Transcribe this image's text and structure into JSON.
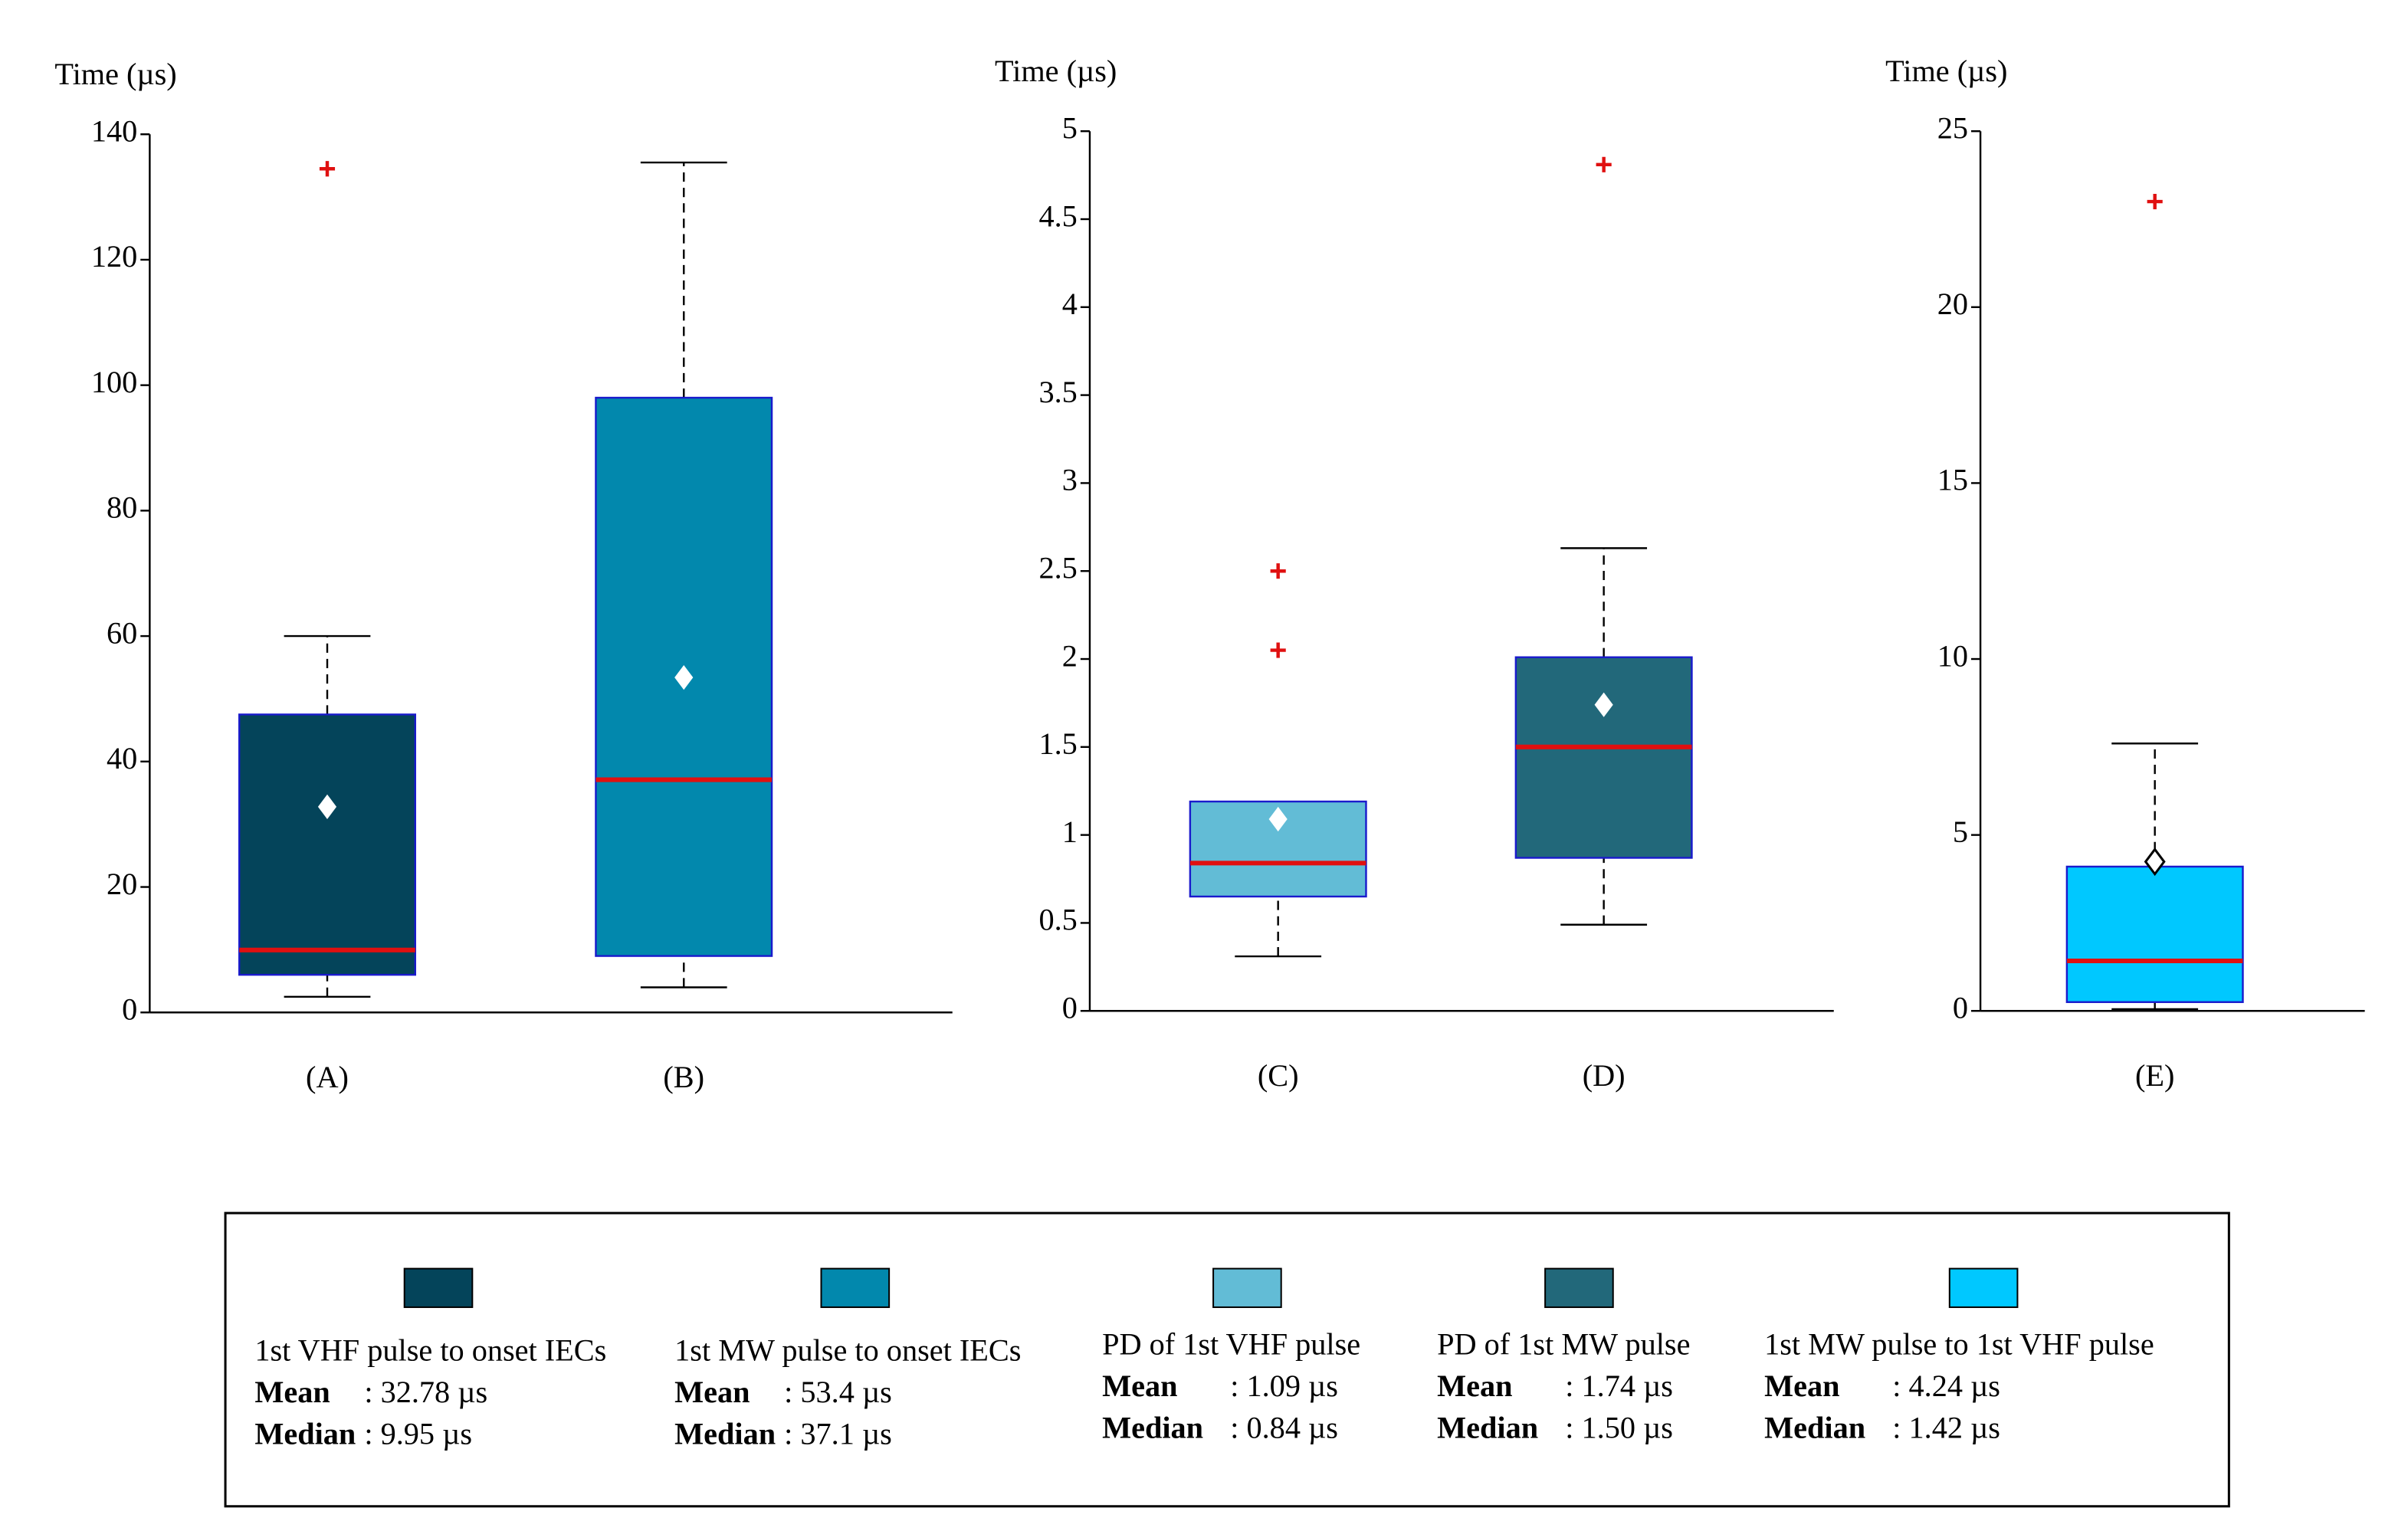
{
  "chart_data": [
    {
      "type": "box",
      "ylabel": "Time (µs)",
      "categories": [
        "(A)",
        "(B)"
      ],
      "ylim": [
        0,
        140
      ],
      "yticks": [
        0,
        20,
        40,
        60,
        80,
        100,
        120,
        140
      ],
      "boxes": [
        {
          "whislo": 2.5,
          "q1": 6,
          "med": 9.95,
          "q3": 47.5,
          "whishi": 60,
          "mean": 32.78,
          "fliers": [
            134.5
          ],
          "color": "#04445a"
        },
        {
          "whislo": 4,
          "q1": 9,
          "med": 37.1,
          "q3": 98,
          "whishi": 135.5,
          "mean": 53.4,
          "fliers": [],
          "color": "#0288ad"
        }
      ]
    },
    {
      "type": "box",
      "ylabel": "Time (µs)",
      "categories": [
        "(C)",
        "(D)"
      ],
      "ylim": [
        0,
        5
      ],
      "yticks": [
        0,
        0.5,
        1,
        1.5,
        2,
        2.5,
        3,
        3.5,
        4,
        4.5,
        5
      ],
      "boxes": [
        {
          "whislo": 0.31,
          "q1": 0.65,
          "med": 0.84,
          "q3": 1.19,
          "whishi": 1.19,
          "mean": 1.09,
          "fliers": [
            2.05,
            2.5
          ],
          "color": "#62bcd6"
        },
        {
          "whislo": 0.49,
          "q1": 0.87,
          "med": 1.5,
          "q3": 2.01,
          "whishi": 2.63,
          "mean": 1.74,
          "fliers": [
            4.81
          ],
          "color": "#22687a"
        }
      ]
    },
    {
      "type": "box",
      "ylabel": "Time (µs)",
      "categories": [
        "(E)"
      ],
      "ylim": [
        0,
        25
      ],
      "yticks": [
        0,
        5,
        10,
        15,
        20,
        25
      ],
      "boxes": [
        {
          "whislo": 0.05,
          "q1": 0.25,
          "med": 1.42,
          "q3": 4.1,
          "whishi": 7.6,
          "mean": 4.24,
          "fliers": [
            23
          ],
          "color": "#00c8ff",
          "mean_edge": "#000000"
        }
      ]
    }
  ],
  "legend": {
    "entries": [
      {
        "name": "1st VHF pulse to onset IECs",
        "mean_key": "Mean",
        "mean_text": ": 32.78 µs",
        "median_key": "Median",
        "median_text": ": 9.95 µs",
        "color": "#04445a"
      },
      {
        "name": "1st MW pulse to onset IECs",
        "mean_key": "Mean",
        "mean_text": ": 53.4 µs",
        "median_key": "Median",
        "median_text": ": 37.1 µs",
        "color": "#0288ad"
      },
      {
        "name": "PD of 1st VHF pulse",
        "mean_key": "Mean",
        "mean_text": ": 1.09 µs",
        "median_key": "Median",
        "median_text": ": 0.84 µs",
        "color": "#62bcd6"
      },
      {
        "name": "PD of 1st MW pulse",
        "mean_key": "Mean",
        "mean_text": ": 1.74 µs",
        "median_key": "Median",
        "median_text": ": 1.50 µs",
        "color": "#22687a"
      },
      {
        "name": "1st MW pulse to 1st VHF pulse",
        "mean_key": "Mean",
        "mean_text": ": 4.24 µs",
        "median_key": "Median",
        "median_text": ": 1.42 µs",
        "color": "#00c8ff"
      }
    ]
  }
}
